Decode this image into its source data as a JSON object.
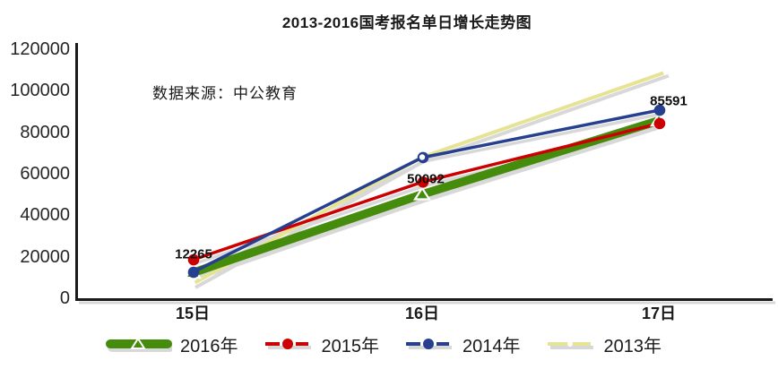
{
  "chart_data": {
    "type": "line",
    "title": "2013-2016国考报名单日增长走势图",
    "source_note": "数据来源：中公教育",
    "categories": [
      "15日",
      "16日",
      "17日"
    ],
    "series": [
      {
        "name": "2016年",
        "color": "#468c0c",
        "marker": "triangle",
        "line_style": "thick-solid",
        "values": [
          12265,
          50092,
          85591
        ],
        "data_labels": [
          "12265",
          "50092",
          "85591"
        ]
      },
      {
        "name": "2015年",
        "color": "#cc0000",
        "marker": "circle",
        "line_style": "solid",
        "values": [
          18500,
          56000,
          84200
        ]
      },
      {
        "name": "2014年",
        "color": "#263f8f",
        "marker": "circle",
        "line_style": "solid",
        "values": [
          12500,
          67800,
          90600
        ]
      },
      {
        "name": "2013年",
        "color": "#e6e494",
        "marker": "white-dot",
        "line_style": "solid",
        "values": [
          6900,
          68000,
          109000
        ]
      }
    ],
    "y_axis": {
      "min": 0,
      "max": 120000,
      "tick_interval": 20000,
      "tick_labels": [
        "0",
        "20000",
        "40000",
        "60000",
        "80000",
        "100000",
        "120000"
      ]
    },
    "x_axis": {
      "tick_labels": [
        "15日",
        "16日",
        "17日"
      ]
    },
    "legend": {
      "position": "bottom",
      "entries": [
        "2016年",
        "2015年",
        "2014年",
        "2013年"
      ]
    },
    "grid": false,
    "colors": {
      "shadow": "#d8d8d8",
      "axis": "#1a1a1a",
      "text": "#262626",
      "background": "#ffffff"
    }
  }
}
